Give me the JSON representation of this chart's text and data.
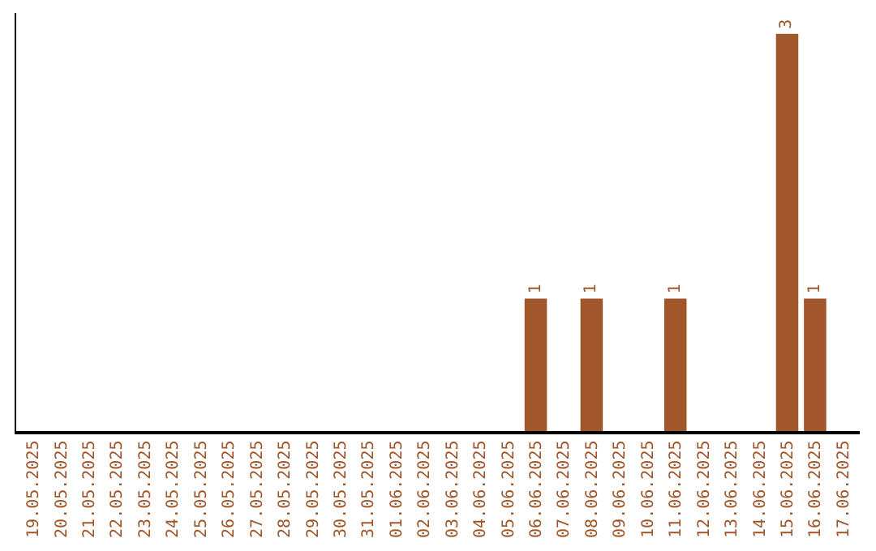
{
  "chart_data": {
    "type": "bar",
    "categories": [
      "19.05.2025",
      "20.05.2025",
      "21.05.2025",
      "22.05.2025",
      "23.05.2025",
      "24.05.2025",
      "25.05.2025",
      "26.05.2025",
      "27.05.2025",
      "28.05.2025",
      "29.05.2025",
      "30.05.2025",
      "31.05.2025",
      "01.06.2025",
      "02.06.2025",
      "03.06.2025",
      "04.06.2025",
      "05.06.2025",
      "06.06.2025",
      "07.06.2025",
      "08.06.2025",
      "09.06.2025",
      "10.06.2025",
      "11.06.2025",
      "12.06.2025",
      "13.06.2025",
      "14.06.2025",
      "15.06.2025",
      "16.06.2025",
      "17.06.2025"
    ],
    "values": [
      null,
      null,
      null,
      null,
      null,
      null,
      null,
      null,
      null,
      null,
      null,
      null,
      null,
      null,
      null,
      null,
      null,
      null,
      1,
      null,
      1,
      null,
      null,
      1,
      null,
      null,
      null,
      3,
      1,
      null
    ],
    "data_labels": true,
    "color": "#a0572b"
  }
}
